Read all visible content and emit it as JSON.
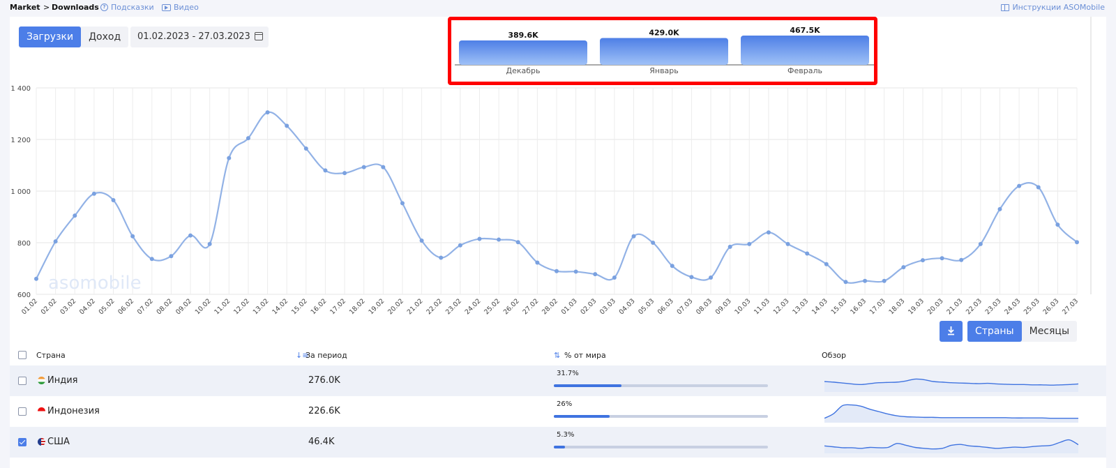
{
  "breadcrumb": {
    "market": "Market",
    "separator": ">",
    "downloads": "Downloads"
  },
  "links": {
    "hints": "Подсказки",
    "video": "Видео",
    "docs": "Инструкции ASOMobile"
  },
  "metric_toggle": {
    "downloads": "Загрузки",
    "revenue": "Доход",
    "active": "downloads"
  },
  "date_range": "01.02.2023 - 27.03.2023",
  "watermark": "asomobile",
  "colors": {
    "accent": "#4c7ee8",
    "line": "#92b2e6",
    "highlight": "#ff0000"
  },
  "chart_data": [
    {
      "type": "bar",
      "categories": [
        "Декабрь",
        "Январь",
        "Февраль"
      ],
      "values": [
        389.6,
        429.0,
        467.5
      ],
      "value_labels": [
        "389.6K",
        "429.0K",
        "467.5K"
      ],
      "unit": "K",
      "highlighted": true
    },
    {
      "type": "line",
      "x": [
        "01.02",
        "02.02",
        "03.02",
        "04.02",
        "05.02",
        "06.02",
        "07.02",
        "08.02",
        "09.02",
        "10.02",
        "11.02",
        "12.02",
        "13.02",
        "14.02",
        "15.02",
        "16.02",
        "17.02",
        "18.02",
        "19.02",
        "20.02",
        "21.02",
        "22.02",
        "23.02",
        "24.02",
        "25.02",
        "26.02",
        "27.02",
        "28.02",
        "01.03",
        "02.03",
        "03.03",
        "04.03",
        "05.03",
        "06.03",
        "07.03",
        "08.03",
        "09.03",
        "10.03",
        "11.03",
        "12.03",
        "13.03",
        "14.03",
        "15.03",
        "16.03",
        "17.03",
        "18.03",
        "19.03",
        "20.03",
        "21.03",
        "22.03",
        "23.03",
        "24.03",
        "25.03",
        "26.03",
        "27.03"
      ],
      "y": [
        660,
        805,
        905,
        990,
        965,
        825,
        737,
        748,
        828,
        795,
        1128,
        1205,
        1305,
        1253,
        1165,
        1080,
        1070,
        1093,
        1093,
        953,
        808,
        742,
        790,
        815,
        812,
        802,
        723,
        690,
        688,
        678,
        665,
        825,
        800,
        710,
        667,
        665,
        784,
        795,
        840,
        795,
        758,
        717,
        648,
        652,
        652,
        705,
        732,
        740,
        733,
        795,
        930,
        1020,
        1015,
        870,
        802
      ],
      "yticks": [
        "600",
        "800",
        "1 000",
        "1 200",
        "1 400"
      ],
      "ylim": [
        600,
        1400
      ],
      "grid": true
    }
  ],
  "table_actions": {
    "countries": "Страны",
    "months": "Месяцы",
    "active": "countries"
  },
  "table": {
    "headers": {
      "country": "Страна",
      "period": "За период",
      "world_share": "% от мира",
      "overview": "Обзор"
    },
    "rows": [
      {
        "country": "Индия",
        "total": "276.0K",
        "share_label": "31.7%",
        "share": 31.7,
        "checked": false,
        "spark": [
          60,
          58,
          55,
          52,
          50,
          53,
          56,
          57,
          58,
          62,
          68,
          66,
          60,
          58,
          56,
          55,
          54,
          53,
          54,
          52,
          51,
          50,
          50,
          49,
          49,
          48,
          49,
          50,
          52
        ]
      },
      {
        "country": "Индонезия",
        "total": "226.6K",
        "share_label": "26%",
        "share": 26,
        "checked": false,
        "spark": [
          40,
          55,
          82,
          84,
          80,
          70,
          62,
          54,
          48,
          45,
          44,
          43,
          43,
          42,
          42,
          42,
          42,
          42,
          42,
          42,
          42,
          41,
          41,
          41,
          41,
          40,
          40,
          40,
          40
        ]
      },
      {
        "country": "США",
        "total": "46.4K",
        "share_label": "5.3%",
        "share": 5.3,
        "checked": true,
        "spark": [
          50,
          47,
          44,
          44,
          42,
          45,
          44,
          45,
          58,
          52,
          45,
          42,
          40,
          42,
          52,
          55,
          50,
          48,
          45,
          42,
          44,
          46,
          45,
          48,
          50,
          52,
          62,
          70,
          54
        ]
      }
    ]
  }
}
